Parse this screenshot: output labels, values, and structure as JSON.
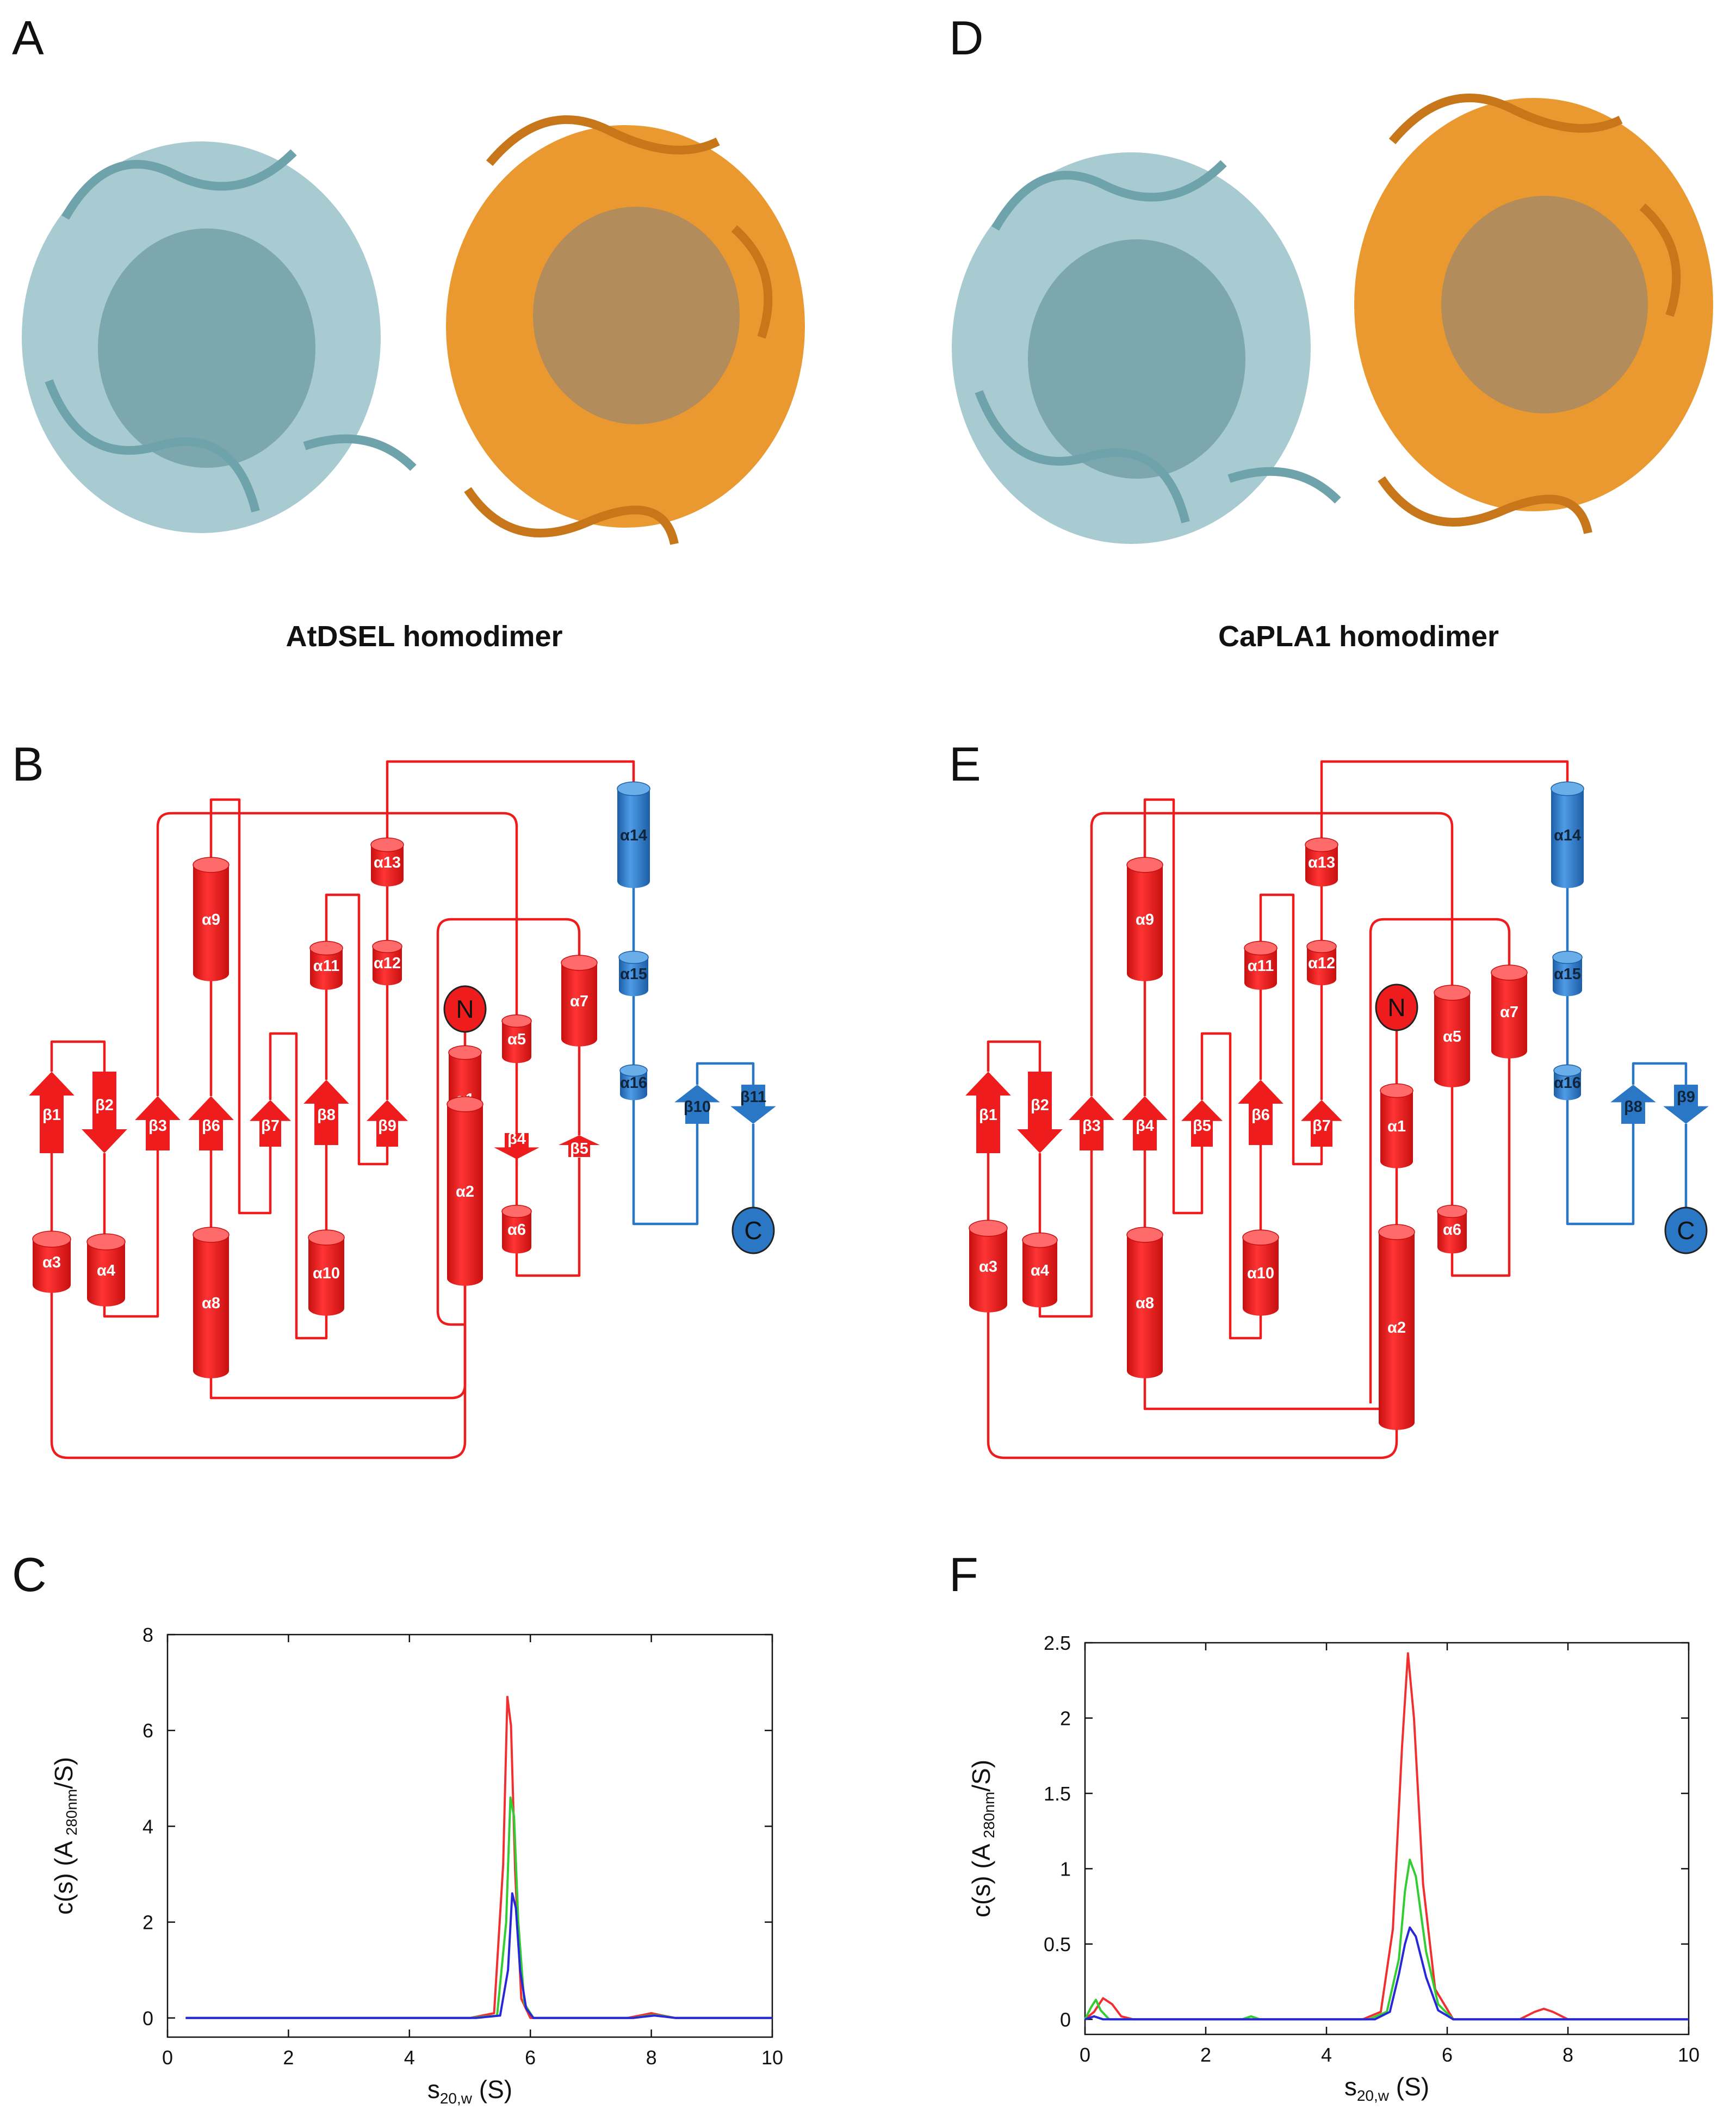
{
  "panels": {
    "A": {
      "letter": "A",
      "caption": "AtDSEL homodimer"
    },
    "B": {
      "letter": "B"
    },
    "C": {
      "letter": "C"
    },
    "D": {
      "letter": "D",
      "caption": "CaPLA1 homodimer"
    },
    "E": {
      "letter": "E"
    },
    "F": {
      "letter": "F"
    }
  },
  "colors": {
    "chain_a": "#9fc7cd",
    "chain_a_dark": "#5b8a92",
    "chain_b": "#e8901e",
    "chain_b_dark": "#7a7f86",
    "topology_main": "#ee1c1c",
    "topology_cap": "#2a78c5",
    "trace_red": "#f03030",
    "trace_green": "#33cc33",
    "trace_blue": "#2828d8"
  },
  "topology_B": {
    "terminus_n": "N",
    "terminus_c": "C",
    "elements": [
      {
        "label": "α1",
        "type": "helix",
        "color": "red"
      },
      {
        "label": "α2",
        "type": "helix",
        "color": "red"
      },
      {
        "label": "α3",
        "type": "helix",
        "color": "red"
      },
      {
        "label": "α4",
        "type": "helix",
        "color": "red"
      },
      {
        "label": "α5",
        "type": "helix",
        "color": "red"
      },
      {
        "label": "α6",
        "type": "helix",
        "color": "red"
      },
      {
        "label": "α7",
        "type": "helix",
        "color": "red"
      },
      {
        "label": "α8",
        "type": "helix",
        "color": "red"
      },
      {
        "label": "α9",
        "type": "helix",
        "color": "red"
      },
      {
        "label": "α10",
        "type": "helix",
        "color": "red"
      },
      {
        "label": "α11",
        "type": "helix",
        "color": "red"
      },
      {
        "label": "α12",
        "type": "helix",
        "color": "red"
      },
      {
        "label": "α13",
        "type": "helix",
        "color": "red"
      },
      {
        "label": "α14",
        "type": "helix",
        "color": "blue"
      },
      {
        "label": "α15",
        "type": "helix",
        "color": "blue"
      },
      {
        "label": "α16",
        "type": "helix",
        "color": "blue"
      },
      {
        "label": "β1",
        "type": "strand-up",
        "color": "red"
      },
      {
        "label": "β2",
        "type": "strand-down",
        "color": "red"
      },
      {
        "label": "β3",
        "type": "strand-up",
        "color": "red"
      },
      {
        "label": "β6",
        "type": "strand-up",
        "color": "red"
      },
      {
        "label": "β7",
        "type": "strand-up",
        "color": "red"
      },
      {
        "label": "β8",
        "type": "strand-up",
        "color": "red"
      },
      {
        "label": "β9",
        "type": "strand-up",
        "color": "red"
      },
      {
        "label": "β4",
        "type": "strand-down",
        "color": "red"
      },
      {
        "label": "β5",
        "type": "strand-up",
        "color": "red"
      },
      {
        "label": "β10",
        "type": "strand-up",
        "color": "blue"
      },
      {
        "label": "β11",
        "type": "strand-down",
        "color": "blue"
      }
    ]
  },
  "topology_E": {
    "terminus_n": "N",
    "terminus_c": "C",
    "elements": [
      {
        "label": "α1",
        "type": "helix",
        "color": "red"
      },
      {
        "label": "α2",
        "type": "helix",
        "color": "red"
      },
      {
        "label": "α3",
        "type": "helix",
        "color": "red"
      },
      {
        "label": "α4",
        "type": "helix",
        "color": "red"
      },
      {
        "label": "α5",
        "type": "helix",
        "color": "red"
      },
      {
        "label": "α6",
        "type": "helix",
        "color": "red"
      },
      {
        "label": "α7",
        "type": "helix",
        "color": "red"
      },
      {
        "label": "α8",
        "type": "helix",
        "color": "red"
      },
      {
        "label": "α9",
        "type": "helix",
        "color": "red"
      },
      {
        "label": "α10",
        "type": "helix",
        "color": "red"
      },
      {
        "label": "α11",
        "type": "helix",
        "color": "red"
      },
      {
        "label": "α12",
        "type": "helix",
        "color": "red"
      },
      {
        "label": "α13",
        "type": "helix",
        "color": "red"
      },
      {
        "label": "α14",
        "type": "helix",
        "color": "blue"
      },
      {
        "label": "α15",
        "type": "helix",
        "color": "blue"
      },
      {
        "label": "α16",
        "type": "helix",
        "color": "blue"
      },
      {
        "label": "β1",
        "type": "strand-up",
        "color": "red"
      },
      {
        "label": "β2",
        "type": "strand-down",
        "color": "red"
      },
      {
        "label": "β3",
        "type": "strand-up",
        "color": "red"
      },
      {
        "label": "β4",
        "type": "strand-up",
        "color": "red"
      },
      {
        "label": "β5",
        "type": "strand-up",
        "color": "red"
      },
      {
        "label": "β6",
        "type": "strand-up",
        "color": "red"
      },
      {
        "label": "β7",
        "type": "strand-up",
        "color": "red"
      },
      {
        "label": "β8",
        "type": "strand-up",
        "color": "blue"
      },
      {
        "label": "β9",
        "type": "strand-down",
        "color": "blue"
      }
    ]
  },
  "chart_data": [
    {
      "panel": "C",
      "type": "line",
      "xlabel": "s20,w  (S)",
      "ylabel": "c(s) (A 280nm/S)",
      "xlim": [
        0,
        10
      ],
      "ylim": [
        -0.4,
        8
      ],
      "xticks": [
        0,
        2,
        4,
        6,
        8,
        10
      ],
      "yticks": [
        0,
        2,
        4,
        6,
        8
      ],
      "grid": false,
      "series": [
        {
          "color": "red",
          "x": [
            0.3,
            5.0,
            5.4,
            5.55,
            5.62,
            5.68,
            5.75,
            5.85,
            6.0,
            7.6,
            7.85,
            8.0,
            8.15,
            8.4,
            10.0
          ],
          "y": [
            0,
            0,
            0.1,
            3.2,
            6.7,
            6.1,
            3.0,
            0.4,
            0,
            0,
            0.06,
            0.1,
            0.06,
            0,
            0
          ]
        },
        {
          "color": "green",
          "x": [
            0.3,
            5.0,
            5.45,
            5.6,
            5.67,
            5.73,
            5.8,
            5.9,
            6.05,
            7.7,
            7.9,
            8.05,
            8.2,
            8.4,
            10.0
          ],
          "y": [
            0,
            0,
            0.05,
            2.0,
            4.6,
            4.2,
            2.0,
            0.3,
            0,
            0,
            0.04,
            0.06,
            0.04,
            0,
            0
          ]
        },
        {
          "color": "blue",
          "x": [
            0.3,
            5.1,
            5.5,
            5.63,
            5.7,
            5.76,
            5.83,
            5.93,
            6.05,
            7.7,
            7.9,
            8.05,
            8.2,
            8.4,
            10.0
          ],
          "y": [
            0,
            0,
            0.05,
            1.0,
            2.6,
            2.3,
            1.0,
            0.2,
            0,
            0,
            0.03,
            0.05,
            0.03,
            0,
            0
          ]
        }
      ]
    },
    {
      "panel": "F",
      "type": "line",
      "xlabel": "s20,w  (S)",
      "ylabel": "c(s) (A 280nm/S)",
      "xlim": [
        0,
        10
      ],
      "ylim": [
        -0.1,
        2.5
      ],
      "xticks": [
        0,
        2,
        4,
        6,
        8,
        10
      ],
      "yticks": [
        0,
        0.5,
        1,
        1.5,
        2,
        2.5
      ],
      "ytick_labels": [
        "0",
        "0.5",
        "1",
        "1.5",
        "2",
        "2.5"
      ],
      "grid": false,
      "series": [
        {
          "color": "red",
          "x": [
            0.0,
            0.15,
            0.3,
            0.45,
            0.6,
            0.8,
            4.6,
            4.9,
            5.1,
            5.25,
            5.35,
            5.45,
            5.6,
            5.8,
            6.1,
            7.2,
            7.45,
            7.6,
            7.75,
            8.0,
            10.0
          ],
          "y": [
            0,
            0.05,
            0.14,
            0.1,
            0.02,
            0,
            0,
            0.05,
            0.6,
            1.8,
            2.43,
            2.0,
            0.9,
            0.2,
            0,
            0,
            0.05,
            0.07,
            0.05,
            0,
            0
          ]
        },
        {
          "color": "green",
          "x": [
            0.0,
            0.1,
            0.18,
            0.26,
            0.4,
            2.6,
            2.75,
            2.9,
            4.7,
            5.0,
            5.2,
            5.3,
            5.38,
            5.48,
            5.65,
            5.85,
            6.1,
            10.0
          ],
          "y": [
            0,
            0.08,
            0.13,
            0.06,
            0,
            0,
            0.02,
            0,
            0,
            0.05,
            0.4,
            0.85,
            1.06,
            0.95,
            0.45,
            0.1,
            0,
            0
          ]
        },
        {
          "color": "blue",
          "x": [
            0.0,
            0.15,
            0.3,
            4.8,
            5.05,
            5.2,
            5.3,
            5.38,
            5.48,
            5.65,
            5.85,
            6.1,
            10.0
          ],
          "y": [
            0,
            0.02,
            0,
            0,
            0.05,
            0.3,
            0.5,
            0.61,
            0.55,
            0.28,
            0.06,
            0,
            0
          ]
        }
      ]
    }
  ]
}
